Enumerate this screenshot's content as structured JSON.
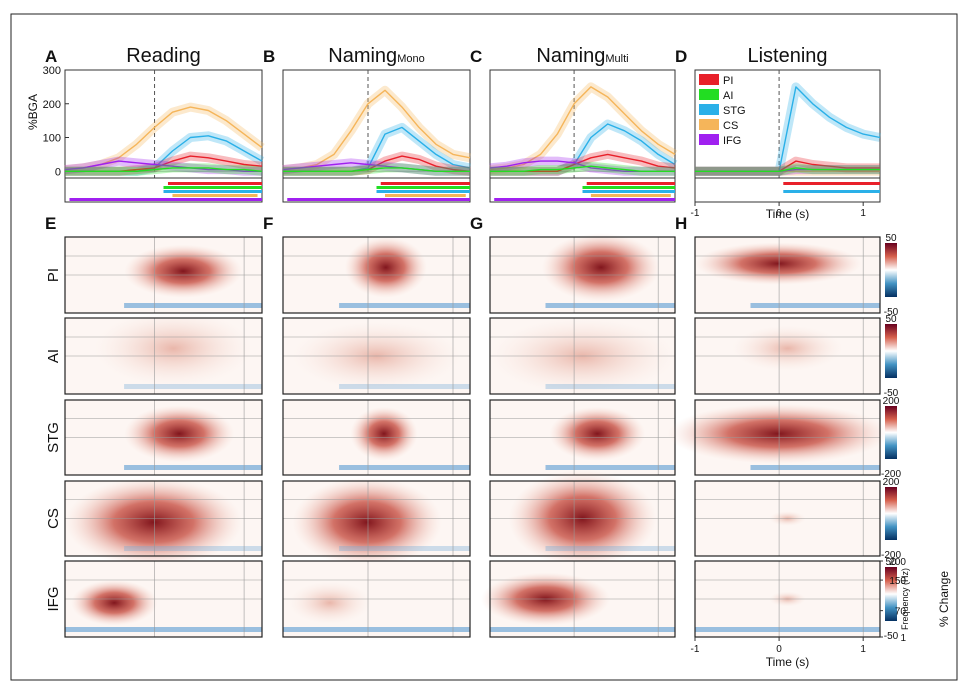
{
  "chart_data": [
    {
      "type": "line",
      "panel": "A",
      "title": "Reading",
      "ylabel": "%BGA",
      "xlim": [
        -1,
        1.2
      ],
      "ylim": [
        -20,
        300
      ],
      "yticks": [
        0,
        100,
        200,
        300
      ],
      "x": [
        -1,
        -0.8,
        -0.6,
        -0.4,
        -0.2,
        0,
        0.2,
        0.4,
        0.6,
        0.8,
        1.0,
        1.2
      ],
      "series": [
        {
          "name": "PI",
          "color": "#e8202a",
          "values": [
            0,
            0,
            0,
            0,
            5,
            10,
            30,
            45,
            40,
            30,
            20,
            15
          ]
        },
        {
          "name": "AI",
          "color": "#22dd22",
          "values": [
            0,
            0,
            0,
            0,
            0,
            5,
            10,
            10,
            10,
            5,
            5,
            0
          ]
        },
        {
          "name": "STG",
          "color": "#2ab0e8",
          "values": [
            0,
            0,
            0,
            0,
            0,
            10,
            60,
            100,
            105,
            90,
            60,
            30
          ]
        },
        {
          "name": "CS",
          "color": "#f5b55a",
          "values": [
            5,
            10,
            20,
            40,
            80,
            130,
            175,
            190,
            180,
            150,
            110,
            70
          ]
        },
        {
          "name": "IFG",
          "color": "#a020f0",
          "values": [
            5,
            10,
            20,
            30,
            25,
            20,
            15,
            10,
            5,
            5,
            0,
            0
          ]
        }
      ]
    },
    {
      "type": "line",
      "panel": "B",
      "title": "Naming",
      "subtitle": "Mono",
      "xlim": [
        -1,
        1.2
      ],
      "ylim": [
        -20,
        300
      ],
      "x": [
        -1,
        -0.8,
        -0.6,
        -0.4,
        -0.2,
        0,
        0.2,
        0.4,
        0.6,
        0.8,
        1.0,
        1.2
      ],
      "series": [
        {
          "name": "PI",
          "color": "#e8202a",
          "values": [
            0,
            0,
            0,
            0,
            0,
            5,
            30,
            45,
            35,
            15,
            5,
            0
          ]
        },
        {
          "name": "AI",
          "color": "#22dd22",
          "values": [
            0,
            0,
            0,
            0,
            0,
            5,
            10,
            10,
            5,
            0,
            0,
            0
          ]
        },
        {
          "name": "STG",
          "color": "#2ab0e8",
          "values": [
            0,
            0,
            0,
            0,
            0,
            10,
            110,
            130,
            90,
            50,
            20,
            10
          ]
        },
        {
          "name": "CS",
          "color": "#f5b55a",
          "values": [
            5,
            10,
            20,
            50,
            120,
            200,
            240,
            190,
            130,
            80,
            50,
            40
          ]
        },
        {
          "name": "IFG",
          "color": "#a020f0",
          "values": [
            5,
            10,
            15,
            20,
            25,
            20,
            15,
            10,
            5,
            0,
            0,
            0
          ]
        }
      ]
    },
    {
      "type": "line",
      "panel": "C",
      "title": "Naming",
      "subtitle": "Multi",
      "xlim": [
        -1,
        1.2
      ],
      "ylim": [
        -20,
        300
      ],
      "x": [
        -1,
        -0.8,
        -0.6,
        -0.4,
        -0.2,
        0,
        0.2,
        0.4,
        0.6,
        0.8,
        1.0,
        1.2
      ],
      "series": [
        {
          "name": "PI",
          "color": "#e8202a",
          "values": [
            0,
            0,
            0,
            0,
            0,
            20,
            40,
            50,
            40,
            30,
            15,
            10
          ]
        },
        {
          "name": "AI",
          "color": "#22dd22",
          "values": [
            0,
            0,
            0,
            5,
            5,
            10,
            15,
            10,
            5,
            0,
            0,
            0
          ]
        },
        {
          "name": "STG",
          "color": "#2ab0e8",
          "values": [
            0,
            0,
            0,
            0,
            0,
            20,
            100,
            140,
            120,
            90,
            50,
            20
          ]
        },
        {
          "name": "CS",
          "color": "#f5b55a",
          "values": [
            5,
            10,
            20,
            50,
            110,
            200,
            250,
            220,
            170,
            120,
            80,
            50
          ]
        },
        {
          "name": "IFG",
          "color": "#a020f0",
          "values": [
            10,
            15,
            25,
            30,
            30,
            25,
            10,
            5,
            0,
            0,
            0,
            0
          ]
        }
      ]
    },
    {
      "type": "line",
      "panel": "D",
      "title": "Listening",
      "xlabel": "Time (s)",
      "xlim": [
        -1,
        1.2
      ],
      "ylim": [
        -20,
        300
      ],
      "xticks": [
        -1,
        0,
        1
      ],
      "legend": "upper left",
      "x": [
        -1,
        -0.8,
        -0.6,
        -0.4,
        -0.2,
        0,
        0.2,
        0.4,
        0.6,
        0.8,
        1.0,
        1.2
      ],
      "series": [
        {
          "name": "PI",
          "color": "#e8202a",
          "values": [
            0,
            0,
            0,
            0,
            0,
            0,
            30,
            20,
            15,
            10,
            10,
            10
          ]
        },
        {
          "name": "AI",
          "color": "#22dd22",
          "values": [
            0,
            0,
            0,
            0,
            0,
            0,
            10,
            5,
            5,
            5,
            5,
            5
          ]
        },
        {
          "name": "STG",
          "color": "#2ab0e8",
          "values": [
            0,
            0,
            0,
            0,
            0,
            0,
            250,
            200,
            160,
            130,
            110,
            100
          ]
        },
        {
          "name": "CS",
          "color": "#f5b55a",
          "values": [
            0,
            0,
            0,
            0,
            0,
            0,
            0,
            0,
            0,
            0,
            0,
            0
          ]
        },
        {
          "name": "IFG",
          "color": "#a020f0",
          "values": [
            0,
            0,
            0,
            0,
            0,
            0,
            5,
            5,
            5,
            5,
            5,
            5
          ]
        }
      ]
    }
  ],
  "spectrograms": {
    "panels": [
      "E",
      "F",
      "G",
      "H"
    ],
    "rows": [
      {
        "label": "PI",
        "colorbar_ticks": [
          50,
          -50
        ]
      },
      {
        "label": "AI",
        "colorbar_ticks": [
          50,
          -50
        ]
      },
      {
        "label": "STG",
        "colorbar_ticks": [
          200,
          -200
        ]
      },
      {
        "label": "CS",
        "colorbar_ticks": [
          200,
          -200
        ]
      },
      {
        "label": "IFG",
        "colorbar_ticks": [
          50,
          -50
        ]
      }
    ],
    "colorbar_label": "% Change",
    "frequency_label": "Frequency (Hz)",
    "frequency_ticks": [
      200,
      150,
      70,
      1
    ],
    "time_label": "Time (s)",
    "time_ticks": [
      -1,
      0,
      1
    ]
  }
}
